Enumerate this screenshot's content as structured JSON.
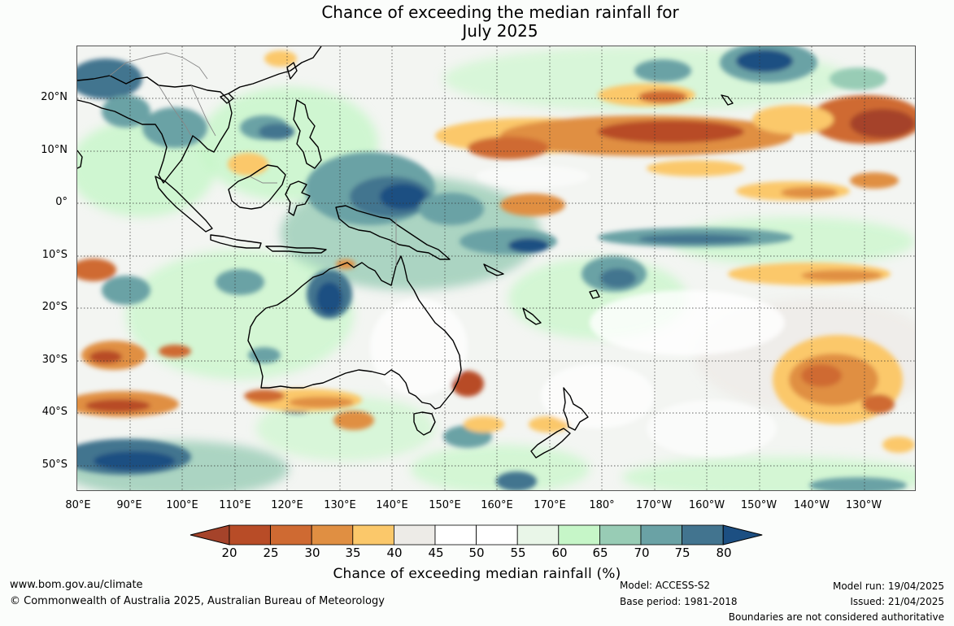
{
  "title": {
    "line1": "Chance of exceeding the median rainfall for",
    "line2": "July 2025"
  },
  "map": {
    "lat_ticks": [
      "20°N",
      "10°N",
      "0°",
      "10°S",
      "20°S",
      "30°S",
      "40°S",
      "50°S"
    ],
    "lon_ticks": [
      "80°E",
      "90°E",
      "100°E",
      "110°E",
      "120°E",
      "130°E",
      "140°E",
      "150°E",
      "160°E",
      "170°E",
      "180°",
      "170°W",
      "160°W",
      "150°W",
      "140°W",
      "130°W"
    ]
  },
  "colorbar": {
    "tick_labels": [
      "20",
      "25",
      "30",
      "35",
      "40",
      "45",
      "50",
      "55",
      "60",
      "65",
      "70",
      "75",
      "80"
    ],
    "colors": [
      "#a5432a",
      "#b84c27",
      "#cf6a32",
      "#e08f42",
      "#fbc86a",
      "#edebe7",
      "#ffffff",
      "#ffffff",
      "#e9f6e8",
      "#c6f6c8",
      "#98ccb5",
      "#6aa2a5",
      "#42748f",
      "#1c4f82"
    ],
    "title": "Chance of exceeding median rainfall (%)"
  },
  "footer": {
    "website": "www.bom.gov.au/climate",
    "copyright": "© Commonwealth of Australia 2025, Australian Bureau of Meteorology",
    "model": "Model: ACCESS-S2",
    "base_period": "Base period: 1981-2018",
    "model_run": "Model run: 19/04/2025",
    "issued": "Issued: 21/04/2025",
    "disclaimer": "Boundaries are not considered authoritative"
  }
}
